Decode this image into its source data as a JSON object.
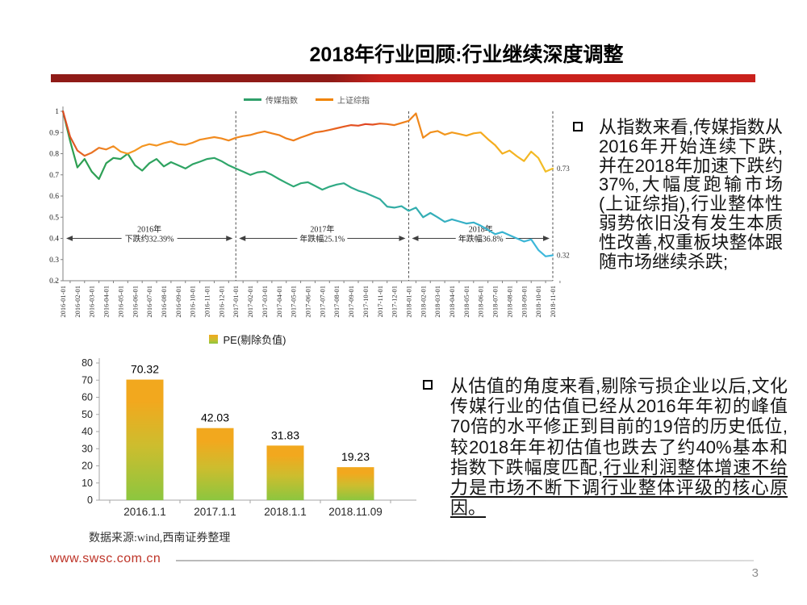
{
  "slide": {
    "title": "2018年行业回顾:行业继续深度调整",
    "page_number": "3",
    "footer_url": "www.swsc.com.cn",
    "source_note": "数据来源:wind,西南证券整理"
  },
  "colors": {
    "title_bar_dark_red": "#8F1B17",
    "title_bar_red": "#C9211C",
    "footer_url_red": "#BE3428",
    "media_line_green": "#2FA06A",
    "media_line_teal_end": "#3FB9DE",
    "market_line_orange": "#F08300",
    "bar_gradient_top": "#F2A81E",
    "bar_gradient_bottom": "#8CC63F"
  },
  "bullets": [
    {
      "text": "从指数来看,传媒指数从2016年开始连续下跌,并在2018年加速下跌约37%,大幅度跑输市场(上证综指),行业整体性弱势依旧没有发生本质性改善,权重板块整体跟随市场继续杀跌;"
    },
    {
      "text_plain": "从估值的角度来看,剔除亏损企业以后,文化传媒行业的估值已经从2016年年初的峰值70倍的水平修正到目前的19倍的历史低位,较2018年年初估值也跌去了约40%基本和指数下跌幅度匹配,",
      "text_underlined": "行业利润整体增速不给力是市场不断下调行业整体评级的核心原因。"
    }
  ],
  "chart_data": [
    {
      "type": "line",
      "title": "",
      "legend_position": "top",
      "ylim": [
        0.2,
        1.0
      ],
      "yticks": [
        1,
        0.9,
        0.8,
        0.7,
        0.6,
        0.5,
        0.4,
        0.3,
        0.2
      ],
      "x_labels": [
        "2016-01-01",
        "2016-02-01",
        "2016-03-01",
        "2016-04-01",
        "2016-05-01",
        "2016-06-01",
        "2016-07-01",
        "2016-08-01",
        "2016-09-01",
        "2016-10-01",
        "2016-11-01",
        "2016-12-01",
        "2017-01-01",
        "2017-02-01",
        "2017-03-01",
        "2017-04-01",
        "2017-05-01",
        "2017-06-01",
        "2017-07-01",
        "2017-08-01",
        "2017-09-01",
        "2017-10-01",
        "2017-11-01",
        "2017-12-01",
        "2018-01-01",
        "2018-02-01",
        "2018-03-01",
        "2018-04-01",
        "2018-05-01",
        "2018-06-01",
        "2018-07-01",
        "2018-08-01",
        "2018-09-01",
        "2018-10-01",
        "2018-11-01"
      ],
      "dashed_months": [
        12,
        24,
        34
      ],
      "arrow_y": 0.4,
      "annotations": [
        {
          "line1": "2016年",
          "line2": "下跌约32.39%",
          "from": 0,
          "to": 12
        },
        {
          "line1": "2017年",
          "line2": "年跌幅25.1%",
          "from": 12,
          "to": 24
        },
        {
          "line1": "2018年",
          "line2": "年跌幅36.8%",
          "from": 24,
          "to": 34
        }
      ],
      "series": [
        {
          "name": "传媒指数",
          "end_label": "0.32",
          "gradient": [
            [
              0,
              "#2E9E4F"
            ],
            [
              0.5,
              "#2FA977"
            ],
            [
              0.8,
              "#35AFC4"
            ],
            [
              1,
              "#3FB9DE"
            ]
          ],
          "values": [
            1.0,
            0.86,
            0.735,
            0.775,
            0.715,
            0.68,
            0.755,
            0.78,
            0.775,
            0.8,
            0.745,
            0.72,
            0.755,
            0.775,
            0.74,
            0.76,
            0.745,
            0.73,
            0.75,
            0.762,
            0.775,
            0.78,
            0.765,
            0.745,
            0.73,
            0.715,
            0.7,
            0.712,
            0.716,
            0.7,
            0.68,
            0.662,
            0.645,
            0.66,
            0.665,
            0.648,
            0.63,
            0.644,
            0.654,
            0.66,
            0.64,
            0.625,
            0.615,
            0.6,
            0.585,
            0.55,
            0.545,
            0.552,
            0.53,
            0.545,
            0.5,
            0.52,
            0.5,
            0.478,
            0.49,
            0.48,
            0.47,
            0.475,
            0.46,
            0.44,
            0.42,
            0.43,
            0.415,
            0.4,
            0.385,
            0.395,
            0.345,
            0.315,
            0.32
          ]
        },
        {
          "name": "上证综指",
          "end_label": "0.73",
          "gradient": [
            [
              0,
              "#DC4A24"
            ],
            [
              0.12,
              "#F59A23"
            ],
            [
              0.5,
              "#EE7C1B"
            ],
            [
              0.62,
              "#E04424"
            ],
            [
              0.68,
              "#ED7C1B"
            ],
            [
              0.85,
              "#F5A81C"
            ],
            [
              1,
              "#F2C029"
            ]
          ],
          "values": [
            1.0,
            0.88,
            0.815,
            0.79,
            0.805,
            0.828,
            0.82,
            0.835,
            0.81,
            0.8,
            0.815,
            0.835,
            0.845,
            0.838,
            0.85,
            0.858,
            0.845,
            0.842,
            0.852,
            0.866,
            0.872,
            0.878,
            0.872,
            0.862,
            0.875,
            0.883,
            0.888,
            0.898,
            0.905,
            0.896,
            0.888,
            0.872,
            0.862,
            0.876,
            0.888,
            0.9,
            0.905,
            0.912,
            0.92,
            0.928,
            0.935,
            0.932,
            0.94,
            0.937,
            0.942,
            0.94,
            0.935,
            0.945,
            0.955,
            0.99,
            0.875,
            0.9,
            0.907,
            0.89,
            0.9,
            0.893,
            0.885,
            0.896,
            0.9,
            0.868,
            0.84,
            0.8,
            0.815,
            0.788,
            0.765,
            0.81,
            0.78,
            0.715,
            0.73
          ]
        }
      ]
    },
    {
      "type": "bar",
      "legend": "PE(剔除负值)",
      "categories": [
        "2016.1.1",
        "2017.1.1",
        "2018.1.1",
        "2018.11.09"
      ],
      "values": [
        70.32,
        42.03,
        31.83,
        19.23
      ],
      "ylim": [
        0,
        80
      ],
      "yticks": [
        0,
        10,
        20,
        30,
        40,
        50,
        60,
        70,
        80
      ],
      "grid": false,
      "legend_position": "top",
      "bar_color_top": "#F2A81E",
      "bar_color_bottom": "#8CC63F"
    }
  ]
}
